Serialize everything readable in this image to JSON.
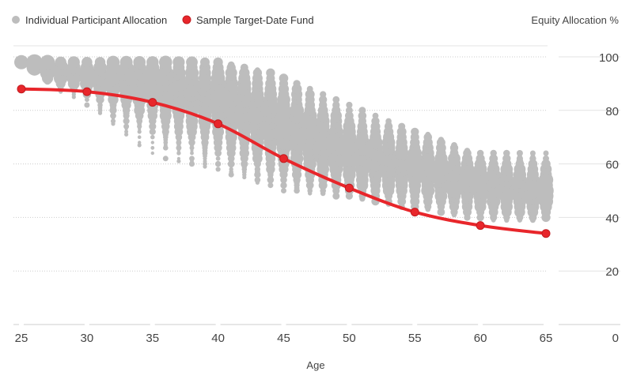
{
  "chart_data": {
    "type": "scatter",
    "title": "",
    "xlabel": "Age",
    "ylabel": "Equity Allocation %",
    "xlim": [
      25,
      65
    ],
    "ylim": [
      0,
      100
    ],
    "x_ticks": [
      25,
      30,
      35,
      40,
      45,
      50,
      55,
      60,
      65
    ],
    "y_ticks": [
      0,
      20,
      40,
      60,
      80,
      100
    ],
    "legend": {
      "placement": "top-left",
      "entries": [
        {
          "name": "Individual Participant Allocation",
          "color": "#bdbdbd"
        },
        {
          "name": "Sample Target-Date Fund",
          "color": "#e8262b"
        }
      ]
    },
    "colors": {
      "participants": "#bdbdbd",
      "fund": "#e8262b",
      "grid": "#cccccc"
    },
    "series": [
      {
        "name": "Sample Target-Date Fund",
        "type": "line",
        "x": [
          25,
          30,
          35,
          40,
          45,
          50,
          55,
          60,
          65
        ],
        "y": [
          88,
          87,
          83,
          75,
          62,
          51,
          42,
          37,
          34
        ]
      },
      {
        "name": "Individual Participant Allocation",
        "type": "bubble",
        "x_range": [
          25,
          65
        ],
        "upper_envelope": [
          [
            25,
            98
          ],
          [
            35,
            98
          ],
          [
            40,
            98
          ],
          [
            45,
            93
          ],
          [
            50,
            82
          ],
          [
            55,
            73
          ],
          [
            60,
            64
          ],
          [
            65,
            64
          ]
        ],
        "lower_envelope": [
          [
            25,
            98
          ],
          [
            28,
            87
          ],
          [
            30,
            82
          ],
          [
            35,
            63
          ],
          [
            40,
            57
          ],
          [
            45,
            50
          ],
          [
            50,
            47
          ],
          [
            55,
            43
          ],
          [
            60,
            39
          ],
          [
            65,
            39
          ]
        ],
        "density_center": [
          [
            25,
            98
          ],
          [
            30,
            93
          ],
          [
            35,
            90
          ],
          [
            40,
            84
          ],
          [
            45,
            74
          ],
          [
            50,
            64
          ],
          [
            55,
            58
          ],
          [
            60,
            52
          ],
          [
            65,
            50
          ]
        ]
      }
    ]
  }
}
